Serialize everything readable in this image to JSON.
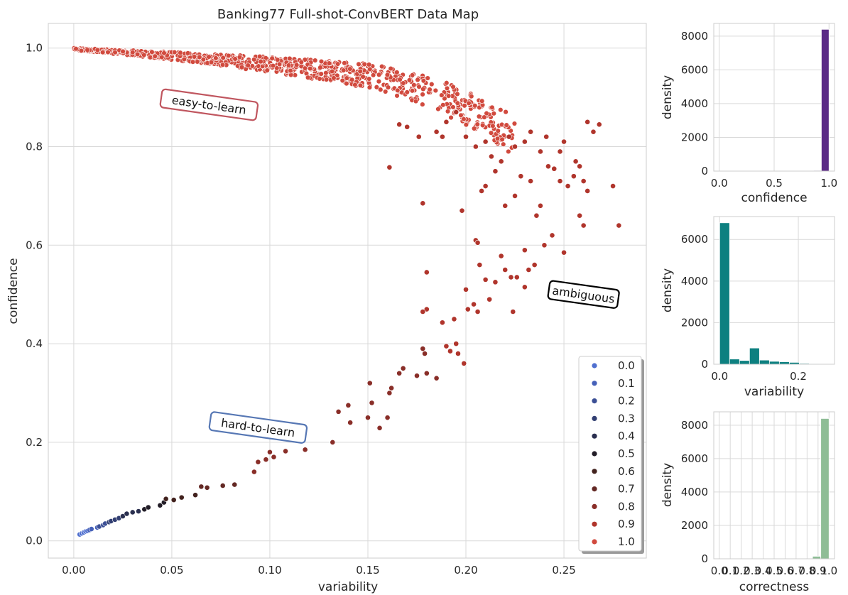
{
  "chart_data": [
    {
      "type": "scatter",
      "title": "Banking77 Full-shot-ConvBERT Data Map",
      "xlabel": "variability",
      "ylabel": "confidence",
      "xlim": [
        -0.013,
        0.292
      ],
      "ylim": [
        -0.035,
        1.05
      ],
      "xticks": [
        0.0,
        0.05,
        0.1,
        0.15,
        0.2,
        0.25
      ],
      "xtick_labels": [
        "0.00",
        "0.05",
        "0.10",
        "0.15",
        "0.20",
        "0.25"
      ],
      "yticks": [
        0.0,
        0.2,
        0.4,
        0.6,
        0.8,
        1.0
      ],
      "ytick_labels": [
        "0.0",
        "0.2",
        "0.4",
        "0.6",
        "0.8",
        "1.0"
      ],
      "grid": true,
      "legend_placement": "bottom-right",
      "hue": "correctness",
      "legend": [
        {
          "label": "0.0",
          "color": "#4f6fcf"
        },
        {
          "label": "0.1",
          "color": "#4560b8"
        },
        {
          "label": "0.2",
          "color": "#3b4f95"
        },
        {
          "label": "0.3",
          "color": "#323f72"
        },
        {
          "label": "0.4",
          "color": "#2a2f4f"
        },
        {
          "label": "0.5",
          "color": "#221d27"
        },
        {
          "label": "0.6",
          "color": "#42221e"
        },
        {
          "label": "0.7",
          "color": "#632824"
        },
        {
          "label": "0.8",
          "color": "#892e28"
        },
        {
          "label": "0.9",
          "color": "#b0352c"
        },
        {
          "label": "1.0",
          "color": "#d14a3e"
        }
      ],
      "annotations": [
        {
          "text": "easy-to-learn",
          "x": 0.069,
          "y": 0.885,
          "color": "#c0565f"
        },
        {
          "text": "ambiguous",
          "x": 0.26,
          "y": 0.5,
          "color": "#000000"
        },
        {
          "text": "hard-to-learn",
          "x": 0.094,
          "y": 0.23,
          "color": "#5677b4"
        }
      ],
      "points": [
        [
          0.003,
          0.013,
          0.0
        ],
        [
          0.004,
          0.015,
          0.0
        ],
        [
          0.005,
          0.017,
          0.0
        ],
        [
          0.006,
          0.019,
          0.0
        ],
        [
          0.007,
          0.02,
          0.0
        ],
        [
          0.008,
          0.022,
          0.1
        ],
        [
          0.009,
          0.024,
          0.1
        ],
        [
          0.012,
          0.027,
          0.1
        ],
        [
          0.013,
          0.029,
          0.2
        ],
        [
          0.015,
          0.032,
          0.2
        ],
        [
          0.016,
          0.035,
          0.2
        ],
        [
          0.018,
          0.038,
          0.3
        ],
        [
          0.019,
          0.04,
          0.3
        ],
        [
          0.021,
          0.043,
          0.3
        ],
        [
          0.023,
          0.046,
          0.3
        ],
        [
          0.025,
          0.05,
          0.4
        ],
        [
          0.027,
          0.055,
          0.4
        ],
        [
          0.03,
          0.058,
          0.4
        ],
        [
          0.033,
          0.06,
          0.4
        ],
        [
          0.036,
          0.064,
          0.5
        ],
        [
          0.038,
          0.068,
          0.5
        ],
        [
          0.044,
          0.072,
          0.5
        ],
        [
          0.046,
          0.078,
          0.5
        ],
        [
          0.047,
          0.085,
          0.6
        ],
        [
          0.051,
          0.083,
          0.6
        ],
        [
          0.055,
          0.088,
          0.6
        ],
        [
          0.062,
          0.093,
          0.6
        ],
        [
          0.065,
          0.11,
          0.7
        ],
        [
          0.068,
          0.108,
          0.7
        ],
        [
          0.076,
          0.112,
          0.7
        ],
        [
          0.082,
          0.114,
          0.7
        ],
        [
          0.092,
          0.14,
          0.8
        ],
        [
          0.094,
          0.16,
          0.8
        ],
        [
          0.098,
          0.165,
          0.8
        ],
        [
          0.1,
          0.18,
          0.8
        ],
        [
          0.102,
          0.17,
          0.8
        ],
        [
          0.108,
          0.182,
          0.8
        ],
        [
          0.118,
          0.185,
          0.8
        ],
        [
          0.132,
          0.2,
          0.8
        ],
        [
          0.135,
          0.262,
          0.8
        ],
        [
          0.14,
          0.275,
          0.8
        ],
        [
          0.141,
          0.24,
          0.8
        ],
        [
          0.15,
          0.25,
          0.8
        ],
        [
          0.151,
          0.32,
          0.8
        ],
        [
          0.152,
          0.28,
          0.8
        ],
        [
          0.156,
          0.229,
          0.8
        ],
        [
          0.16,
          0.25,
          0.8
        ],
        [
          0.161,
          0.3,
          0.8
        ],
        [
          0.162,
          0.31,
          0.8
        ],
        [
          0.166,
          0.34,
          0.8
        ],
        [
          0.168,
          0.35,
          0.8
        ],
        [
          0.175,
          0.335,
          0.8
        ],
        [
          0.178,
          0.39,
          0.8
        ],
        [
          0.179,
          0.38,
          0.8
        ],
        [
          0.18,
          0.34,
          0.8
        ],
        [
          0.185,
          0.33,
          0.8
        ],
        [
          0.18,
          0.47,
          0.9
        ],
        [
          0.18,
          0.545,
          0.9
        ],
        [
          0.178,
          0.465,
          0.9
        ],
        [
          0.178,
          0.685,
          0.9
        ],
        [
          0.188,
          0.443,
          0.9
        ],
        [
          0.19,
          0.395,
          0.9
        ],
        [
          0.192,
          0.385,
          0.9
        ],
        [
          0.194,
          0.45,
          0.9
        ],
        [
          0.195,
          0.4,
          0.9
        ],
        [
          0.196,
          0.38,
          0.9
        ],
        [
          0.199,
          0.36,
          0.9
        ],
        [
          0.2,
          0.51,
          0.9
        ],
        [
          0.201,
          0.47,
          0.9
        ],
        [
          0.204,
          0.48,
          0.9
        ],
        [
          0.206,
          0.465,
          0.9
        ],
        [
          0.207,
          0.56,
          0.9
        ],
        [
          0.21,
          0.53,
          0.9
        ],
        [
          0.212,
          0.49,
          0.9
        ],
        [
          0.215,
          0.525,
          0.9
        ],
        [
          0.218,
          0.578,
          0.9
        ],
        [
          0.22,
          0.55,
          0.9
        ],
        [
          0.223,
          0.535,
          0.9
        ],
        [
          0.224,
          0.465,
          0.9
        ],
        [
          0.226,
          0.535,
          0.9
        ],
        [
          0.23,
          0.59,
          0.9
        ],
        [
          0.23,
          0.515,
          0.9
        ],
        [
          0.232,
          0.55,
          0.9
        ],
        [
          0.235,
          0.56,
          0.9
        ],
        [
          0.24,
          0.6,
          0.9
        ],
        [
          0.244,
          0.62,
          0.9
        ],
        [
          0.25,
          0.585,
          0.9
        ],
        [
          0.26,
          0.64,
          0.9
        ],
        [
          0.278,
          0.64,
          0.9
        ],
        [
          0.198,
          0.67,
          0.9
        ],
        [
          0.205,
          0.61,
          0.9
        ],
        [
          0.206,
          0.605,
          0.9
        ],
        [
          0.208,
          0.71,
          0.9
        ],
        [
          0.21,
          0.72,
          0.9
        ],
        [
          0.215,
          0.75,
          0.9
        ],
        [
          0.22,
          0.68,
          0.9
        ],
        [
          0.225,
          0.7,
          0.9
        ],
        [
          0.228,
          0.74,
          0.9
        ],
        [
          0.233,
          0.73,
          0.9
        ],
        [
          0.236,
          0.66,
          0.9
        ],
        [
          0.238,
          0.68,
          0.9
        ],
        [
          0.242,
          0.76,
          0.9
        ],
        [
          0.245,
          0.755,
          0.9
        ],
        [
          0.248,
          0.73,
          0.9
        ],
        [
          0.252,
          0.72,
          0.9
        ],
        [
          0.255,
          0.74,
          0.9
        ],
        [
          0.258,
          0.66,
          0.9
        ],
        [
          0.26,
          0.73,
          0.9
        ],
        [
          0.262,
          0.71,
          0.9
        ],
        [
          0.275,
          0.72,
          0.9
        ],
        [
          0.185,
          0.83,
          0.9
        ],
        [
          0.188,
          0.82,
          0.9
        ],
        [
          0.19,
          0.85,
          0.9
        ],
        [
          0.195,
          0.87,
          0.9
        ],
        [
          0.2,
          0.82,
          0.9
        ],
        [
          0.205,
          0.8,
          0.9
        ],
        [
          0.21,
          0.81,
          0.9
        ],
        [
          0.213,
          0.78,
          0.9
        ],
        [
          0.218,
          0.77,
          0.9
        ],
        [
          0.222,
          0.82,
          0.9
        ],
        [
          0.225,
          0.8,
          0.9
        ],
        [
          0.23,
          0.81,
          0.9
        ],
        [
          0.233,
          0.83,
          0.9
        ],
        [
          0.238,
          0.79,
          0.9
        ],
        [
          0.241,
          0.82,
          0.9
        ],
        [
          0.248,
          0.79,
          0.9
        ],
        [
          0.25,
          0.81,
          0.9
        ],
        [
          0.256,
          0.77,
          0.9
        ],
        [
          0.258,
          0.76,
          0.9
        ],
        [
          0.262,
          0.85,
          0.9
        ],
        [
          0.265,
          0.83,
          0.9
        ],
        [
          0.268,
          0.845,
          0.9
        ],
        [
          0.161,
          0.758,
          0.9
        ],
        [
          0.166,
          0.845,
          0.9
        ],
        [
          0.17,
          0.84,
          0.9
        ],
        [
          0.176,
          0.82,
          0.9
        ]
      ],
      "dense_band": {
        "correctness": "1.0",
        "description_free": true,
        "segments": [
          [
            0.0,
            1.0
          ],
          [
            0.05,
            0.992
          ],
          [
            0.1,
            0.982
          ],
          [
            0.15,
            0.968
          ],
          [
            0.17,
            0.955
          ],
          [
            0.19,
            0.93
          ],
          [
            0.21,
            0.895
          ],
          [
            0.225,
            0.86
          ]
        ]
      }
    },
    {
      "type": "bar",
      "xlabel": "confidence",
      "ylabel": "density",
      "xlim": [
        -0.05,
        1.05
      ],
      "ylim": [
        0,
        8750
      ],
      "xticks": [
        0.0,
        0.5,
        1.0
      ],
      "xtick_labels": [
        "0.0",
        "0.5",
        "1.0"
      ],
      "yticks": [
        0,
        2000,
        4000,
        6000,
        8000
      ],
      "ytick_labels": [
        "0",
        "2000",
        "4000",
        "6000",
        "8000"
      ],
      "bin_edges": [
        0.86,
        0.93,
        1.0
      ],
      "values": [
        40,
        8400
      ],
      "color": "#5b2a86"
    },
    {
      "type": "bar",
      "xlabel": "variability",
      "ylabel": "density",
      "xlim": [
        -0.015,
        0.292
      ],
      "ylim": [
        0,
        7100
      ],
      "xticks": [
        0.0,
        0.2
      ],
      "xtick_labels": [
        "0.0",
        "0.2"
      ],
      "yticks": [
        0,
        2000,
        4000,
        6000
      ],
      "ytick_labels": [
        "0",
        "2000",
        "4000",
        "6000"
      ],
      "bin_edges": [
        0.0,
        0.0253,
        0.0506,
        0.0759,
        0.1012,
        0.1265,
        0.1518,
        0.1771,
        0.2024,
        0.2277,
        0.253,
        0.2783
      ],
      "values": [
        6800,
        250,
        180,
        780,
        200,
        140,
        120,
        90,
        40,
        20,
        10
      ],
      "color": "#0d8080"
    },
    {
      "type": "bar",
      "xlabel": "correctness",
      "ylabel": "density",
      "xlim": [
        -0.05,
        1.05
      ],
      "ylim": [
        0,
        8800
      ],
      "xticks": [
        0.0,
        0.1,
        0.2,
        0.3,
        0.4,
        0.5,
        0.6,
        0.7,
        0.8,
        0.9,
        1.0
      ],
      "xtick_labels": [
        "0.0",
        "0.1",
        "0.2",
        "0.3",
        "0.4",
        "0.5",
        "0.6",
        "0.7",
        "0.8",
        "0.9",
        "1.0"
      ],
      "yticks": [
        0,
        2000,
        4000,
        6000,
        8000
      ],
      "ytick_labels": [
        "0",
        "2000",
        "4000",
        "6000",
        "8000"
      ],
      "bin_edges": [
        0.85,
        0.925,
        1.0
      ],
      "values": [
        150,
        8400
      ],
      "color": "#8fbd96"
    }
  ]
}
